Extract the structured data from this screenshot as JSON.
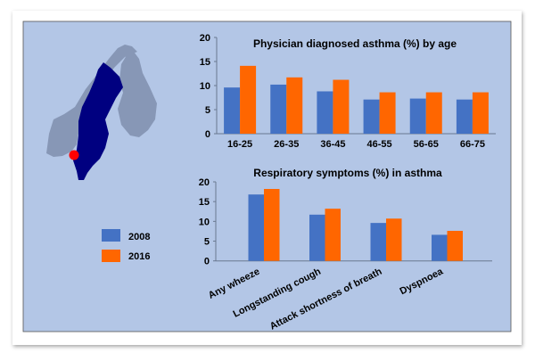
{
  "colors": {
    "s2008": "#4472c4",
    "s2016": "#ff6600",
    "panel": "#b3c6e6",
    "sweden": "#000080",
    "neighbors": "#8797b6",
    "marker": "#ff0000"
  },
  "legend": [
    {
      "label": "2008"
    },
    {
      "label": "2016"
    }
  ],
  "chart_data": [
    {
      "type": "bar",
      "title": "Physician diagnosed asthma (%) by age",
      "xlabel": "",
      "ylabel": "",
      "ylim": [
        0,
        20
      ],
      "yticks": [
        "0",
        "5",
        "10",
        "15",
        "20"
      ],
      "categories": [
        "16-25",
        "26-35",
        "36-45",
        "46-55",
        "56-65",
        "66-75"
      ],
      "series": [
        {
          "name": "2008",
          "values": [
            9.6,
            10.2,
            8.8,
            7.1,
            7.3,
            7.1
          ]
        },
        {
          "name": "2016",
          "values": [
            14.1,
            11.7,
            11.2,
            8.6,
            8.6,
            8.6
          ]
        }
      ],
      "legend": "left"
    },
    {
      "type": "bar",
      "title": "Respiratory symptoms (%) in asthma",
      "xlabel": "",
      "ylabel": "",
      "ylim": [
        0,
        20
      ],
      "yticks": [
        "0",
        "5",
        "10",
        "15",
        "20"
      ],
      "categories": [
        "Any wheeze",
        "Longstanding cough",
        "Attack shortness of breath",
        "Dyspnoea"
      ],
      "series": [
        {
          "name": "2008",
          "values": [
            16.8,
            11.7,
            9.6,
            6.6
          ]
        },
        {
          "name": "2016",
          "values": [
            18.2,
            13.2,
            10.7,
            7.6
          ]
        }
      ],
      "legend": "left"
    }
  ]
}
